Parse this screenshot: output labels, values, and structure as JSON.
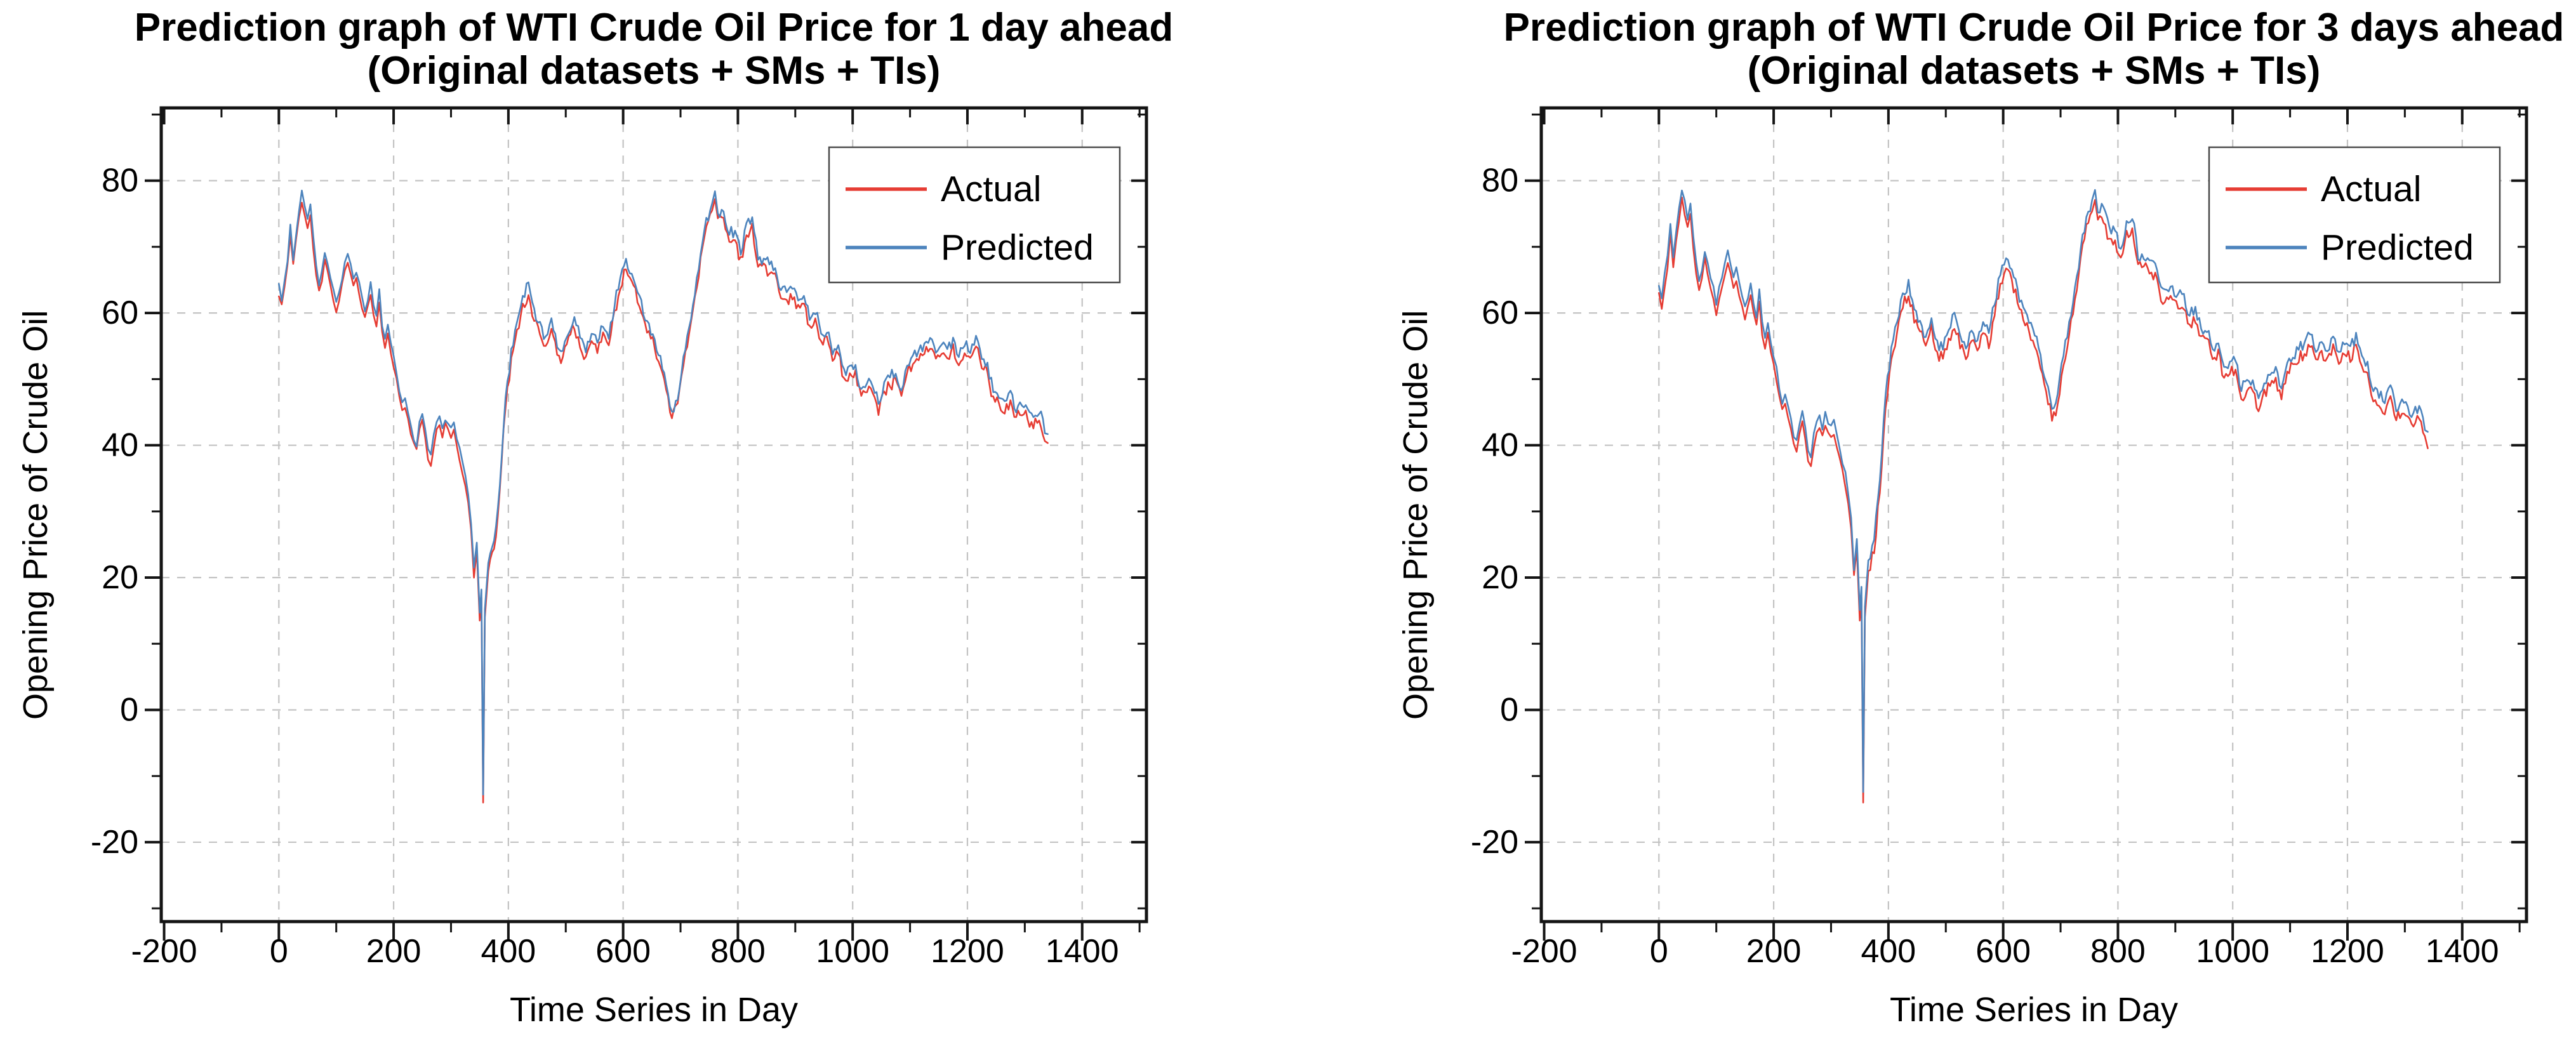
{
  "figure": {
    "background": "#ffffff",
    "frame_color": "#141414",
    "grid_color": "#c3c3c3",
    "tick_label_color": "#000000"
  },
  "chart_data": [
    {
      "type": "line",
      "title_line1": "Prediction graph of WTI Crude Oil Price for 1 day ahead",
      "title_line2": "(Original datasets + SMs + TIs)",
      "xlabel": "Time Series in Day",
      "ylabel": "Opening Price of Crude Oil",
      "xlim": [
        -205,
        1512
      ],
      "ylim": [
        -32,
        91
      ],
      "x_ticks_major": [
        -200,
        0,
        200,
        400,
        600,
        800,
        1000,
        1200,
        1400
      ],
      "x_ticks_minor": [
        -100,
        100,
        300,
        500,
        700,
        900,
        1100,
        1300,
        1500
      ],
      "y_ticks_major": [
        -20,
        0,
        20,
        40,
        60,
        80
      ],
      "y_ticks_minor": [
        -30,
        -10,
        10,
        30,
        50,
        70,
        90
      ],
      "grid": true,
      "legend_position": "top-right",
      "x": [
        0,
        5,
        10,
        15,
        20,
        25,
        30,
        35,
        40,
        45,
        50,
        55,
        60,
        65,
        70,
        75,
        80,
        85,
        90,
        95,
        100,
        105,
        110,
        115,
        120,
        125,
        130,
        135,
        140,
        145,
        150,
        155,
        160,
        165,
        170,
        175,
        180,
        185,
        190,
        195,
        200,
        205,
        210,
        215,
        220,
        225,
        230,
        235,
        240,
        245,
        250,
        255,
        260,
        265,
        270,
        275,
        280,
        285,
        290,
        295,
        300,
        305,
        310,
        315,
        320,
        325,
        330,
        335,
        340,
        345,
        350,
        353,
        356,
        359,
        362,
        365,
        375,
        385,
        395,
        405,
        415,
        425,
        435,
        445,
        455,
        465,
        475,
        485,
        495,
        505,
        515,
        525,
        535,
        545,
        555,
        565,
        575,
        585,
        595,
        605,
        615,
        625,
        635,
        645,
        655,
        665,
        675,
        685,
        695,
        705,
        715,
        725,
        735,
        745,
        755,
        760,
        765,
        775,
        785,
        795,
        805,
        815,
        825,
        835,
        845,
        855,
        865,
        875,
        885,
        895,
        905,
        915,
        925,
        935,
        945,
        955,
        965,
        975,
        985,
        995,
        1005,
        1015,
        1025,
        1035,
        1045,
        1055,
        1065,
        1075,
        1085,
        1095,
        1105,
        1115,
        1125,
        1135,
        1145,
        1155,
        1165,
        1175,
        1185,
        1195,
        1205,
        1215,
        1225,
        1235,
        1245,
        1255,
        1265,
        1275,
        1285,
        1295,
        1305,
        1315,
        1325,
        1335,
        1340
      ],
      "series": [
        {
          "name": "Actual",
          "color": "#e63c33",
          "values": [
            63,
            61,
            64,
            67,
            72,
            67,
            71,
            74,
            77,
            75,
            73,
            75,
            70,
            66,
            63,
            65,
            68,
            66,
            64,
            62,
            60,
            62,
            64,
            66,
            68,
            66,
            64,
            65,
            63,
            61,
            59,
            61,
            63,
            60,
            58,
            62,
            57,
            55,
            57,
            54,
            52,
            50,
            47,
            45,
            46,
            44,
            42,
            40,
            39,
            42,
            44,
            41,
            38,
            37,
            40,
            42,
            43,
            41,
            43,
            42,
            41,
            42,
            40,
            38,
            36,
            34,
            31,
            27,
            20,
            24,
            13.5,
            17,
            -14,
            14,
            17.5,
            21,
            24,
            33,
            46,
            53,
            57,
            61,
            63,
            59,
            57,
            55,
            58,
            54,
            53,
            56,
            58,
            55,
            53,
            56,
            54,
            57,
            55,
            60,
            64,
            67,
            65,
            62,
            59,
            57,
            55,
            52,
            48,
            44,
            46,
            52,
            57,
            62,
            68,
            73,
            75,
            77,
            74,
            74,
            71,
            71,
            68,
            72,
            73,
            67,
            67,
            66,
            66,
            62,
            62,
            62,
            61,
            61,
            58,
            59,
            56,
            56,
            53,
            54,
            50,
            51,
            51,
            47,
            48,
            48,
            45,
            48,
            49,
            50,
            47,
            51,
            52,
            53,
            54,
            55,
            53,
            54,
            53,
            55,
            52,
            54,
            53,
            55,
            52,
            51,
            47,
            46,
            45,
            47,
            44,
            45,
            44,
            43,
            44,
            41,
            40
          ]
        },
        {
          "name": "Predicted",
          "color": "#4d84bd",
          "values": [
            64.2,
            62.2,
            65.2,
            68.2,
            73.2,
            68.2,
            72.2,
            75.2,
            78.2,
            76.2,
            74.2,
            76.2,
            71.2,
            67.2,
            64.2,
            66.2,
            69.2,
            67.2,
            65.2,
            63.2,
            61.2,
            63.2,
            65.2,
            67.2,
            69.2,
            67.2,
            65.2,
            66.2,
            64.2,
            62.2,
            60.2,
            62.2,
            64.2,
            61.2,
            59.2,
            63.2,
            58.2,
            56.2,
            58.2,
            55.2,
            53.2,
            51.2,
            48.2,
            46.2,
            47.2,
            45.2,
            43.2,
            41.2,
            40.2,
            43.2,
            45.2,
            42.2,
            39.2,
            38.2,
            41.2,
            43.2,
            44.2,
            42.2,
            44.2,
            43.2,
            42.2,
            43.2,
            41.2,
            39.2,
            37.2,
            35.2,
            32.2,
            28.2,
            21.2,
            25.2,
            14.7,
            18.2,
            -12.8,
            15.2,
            18.7,
            22.2,
            25.2,
            34.2,
            47.2,
            54.2,
            58.2,
            62.2,
            64.2,
            60.2,
            58.2,
            56.2,
            59.2,
            55.2,
            54.2,
            57.2,
            59.2,
            56.2,
            54.2,
            57.2,
            55.2,
            58.2,
            56.2,
            61.2,
            65.2,
            68.2,
            66.2,
            63.2,
            60.2,
            58.2,
            56.2,
            53.2,
            49.2,
            45.2,
            47.2,
            53.2,
            58.2,
            63.2,
            69.2,
            74.2,
            76.2,
            78.2,
            75.2,
            75.2,
            72.2,
            72.2,
            69.2,
            73.2,
            74.2,
            68.2,
            68.2,
            67.2,
            67.2,
            63.2,
            63.2,
            63.2,
            62.2,
            62.2,
            59.2,
            60.2,
            57.2,
            57.2,
            54.2,
            55.2,
            51.2,
            52.2,
            52.2,
            48.2,
            49.2,
            49.2,
            46.2,
            49.2,
            50.2,
            51.2,
            48.2,
            52.2,
            53.2,
            54.2,
            55.2,
            56.2,
            54.2,
            55.2,
            54.2,
            56.2,
            53.2,
            55.2,
            54.2,
            56.2,
            53.2,
            52.2,
            48.2,
            47.2,
            46.2,
            48.2,
            45.2,
            46.2,
            45.2,
            44.2,
            45.2,
            42.2,
            41.2
          ]
        }
      ]
    },
    {
      "type": "line",
      "title_line1": "Prediction graph of WTI Crude Oil Price for 3 days ahead",
      "title_line2": "(Original datasets + SMs + TIs)",
      "xlabel": "Time Series in Day",
      "ylabel": "Opening Price of Crude Oil",
      "xlim": [
        -205,
        1512
      ],
      "ylim": [
        -32,
        91
      ],
      "x_ticks_major": [
        -200,
        0,
        200,
        400,
        600,
        800,
        1000,
        1200,
        1400
      ],
      "x_ticks_minor": [
        -100,
        100,
        300,
        500,
        700,
        900,
        1100,
        1300,
        1500
      ],
      "y_ticks_major": [
        -20,
        0,
        20,
        40,
        60,
        80
      ],
      "y_ticks_minor": [
        -30,
        -10,
        10,
        30,
        50,
        70,
        90
      ],
      "grid": true,
      "legend_position": "top-right",
      "x": [
        0,
        5,
        10,
        15,
        20,
        25,
        30,
        35,
        40,
        45,
        50,
        55,
        60,
        65,
        70,
        75,
        80,
        85,
        90,
        95,
        100,
        105,
        110,
        115,
        120,
        125,
        130,
        135,
        140,
        145,
        150,
        155,
        160,
        165,
        170,
        175,
        180,
        185,
        190,
        195,
        200,
        205,
        210,
        215,
        220,
        225,
        230,
        235,
        240,
        245,
        250,
        255,
        260,
        265,
        270,
        275,
        280,
        285,
        290,
        295,
        300,
        305,
        310,
        315,
        320,
        325,
        330,
        335,
        340,
        345,
        350,
        353,
        356,
        359,
        362,
        365,
        375,
        385,
        395,
        405,
        415,
        425,
        435,
        445,
        455,
        465,
        475,
        485,
        495,
        505,
        515,
        525,
        535,
        545,
        555,
        565,
        575,
        585,
        595,
        605,
        615,
        625,
        635,
        645,
        655,
        665,
        675,
        685,
        695,
        705,
        715,
        725,
        735,
        745,
        755,
        760,
        765,
        775,
        785,
        795,
        805,
        815,
        825,
        835,
        845,
        855,
        865,
        875,
        885,
        895,
        905,
        915,
        925,
        935,
        945,
        955,
        965,
        975,
        985,
        995,
        1005,
        1015,
        1025,
        1035,
        1045,
        1055,
        1065,
        1075,
        1085,
        1095,
        1105,
        1115,
        1125,
        1135,
        1145,
        1155,
        1165,
        1175,
        1185,
        1195,
        1205,
        1215,
        1225,
        1235,
        1245,
        1255,
        1265,
        1275,
        1285,
        1295,
        1305,
        1315,
        1325,
        1335,
        1340
      ],
      "series": [
        {
          "name": "Actual",
          "color": "#e63c33",
          "values": [
            63,
            61,
            64,
            67,
            72,
            67,
            71,
            74,
            77,
            75,
            73,
            75,
            70,
            66,
            63,
            65,
            68,
            66,
            64,
            62,
            60,
            62,
            64,
            66,
            68,
            66,
            64,
            65,
            63,
            61,
            59,
            61,
            63,
            60,
            58,
            62,
            57,
            55,
            57,
            54,
            52,
            50,
            47,
            45,
            46,
            44,
            42,
            40,
            39,
            42,
            44,
            41,
            38,
            37,
            40,
            42,
            43,
            41,
            43,
            42,
            41,
            42,
            40,
            38,
            36,
            34,
            31,
            27,
            20,
            24,
            13.5,
            17,
            -14,
            14,
            17.5,
            21,
            24,
            33,
            46,
            53,
            57,
            61,
            63,
            59,
            57,
            55,
            58,
            54,
            53,
            56,
            58,
            55,
            53,
            56,
            54,
            57,
            55,
            60,
            64,
            67,
            65,
            62,
            59,
            57,
            55,
            52,
            48,
            44,
            46,
            52,
            57,
            62,
            68,
            73,
            75,
            77,
            74,
            74,
            71,
            71,
            68,
            72,
            73,
            67,
            67,
            66,
            66,
            62,
            62,
            62,
            61,
            61,
            58,
            59,
            56,
            56,
            53,
            54,
            50,
            51,
            51,
            47,
            48,
            48,
            45,
            48,
            49,
            50,
            47,
            51,
            52,
            53,
            54,
            55,
            53,
            54,
            53,
            55,
            52,
            54,
            53,
            55,
            52,
            51,
            47,
            46,
            45,
            47,
            44,
            45,
            44,
            43,
            44,
            41,
            40
          ]
        },
        {
          "name": "Predicted",
          "color": "#4d84bd",
          "values": [
            64.6,
            62.6,
            65.6,
            68.6,
            73.6,
            68.6,
            72.6,
            75.6,
            78.6,
            76.6,
            74.6,
            76.6,
            71.6,
            67.6,
            64.6,
            66.6,
            69.6,
            67.6,
            65.6,
            63.6,
            61.6,
            63.6,
            65.6,
            67.6,
            69.6,
            67.6,
            65.6,
            66.6,
            64.6,
            62.6,
            60.6,
            62.6,
            64.6,
            61.6,
            59.6,
            63.6,
            58.6,
            56.6,
            58.6,
            55.6,
            53.6,
            51.6,
            48.6,
            46.6,
            47.6,
            45.6,
            43.6,
            41.6,
            40.6,
            43.6,
            45.6,
            42.6,
            39.6,
            38.6,
            41.6,
            43.6,
            44.6,
            42.6,
            44.6,
            43.6,
            42.6,
            43.6,
            41.6,
            39.6,
            37.6,
            35.6,
            32.6,
            28.6,
            21.6,
            25.6,
            15.1,
            18.6,
            -12.4,
            15.6,
            19.1,
            22.6,
            25.6,
            34.6,
            47.6,
            54.6,
            58.6,
            62.6,
            64.6,
            60.6,
            58.6,
            56.6,
            59.6,
            55.6,
            54.6,
            57.6,
            59.6,
            56.6,
            54.6,
            57.6,
            55.6,
            58.6,
            56.6,
            61.6,
            65.6,
            68.6,
            66.6,
            63.6,
            60.6,
            58.6,
            56.6,
            53.6,
            49.6,
            45.6,
            47.6,
            53.6,
            58.6,
            63.6,
            69.6,
            74.6,
            76.6,
            78.6,
            75.6,
            75.6,
            72.6,
            72.6,
            69.6,
            73.6,
            74.6,
            68.6,
            68.6,
            67.6,
            67.6,
            63.6,
            63.6,
            63.6,
            62.6,
            62.6,
            59.6,
            60.6,
            57.6,
            57.6,
            54.6,
            55.6,
            51.6,
            52.6,
            52.6,
            48.6,
            49.6,
            49.6,
            46.6,
            49.6,
            50.6,
            51.6,
            48.6,
            52.6,
            53.6,
            54.6,
            55.6,
            56.6,
            54.6,
            55.6,
            54.6,
            56.6,
            53.6,
            55.6,
            54.6,
            56.6,
            53.6,
            52.6,
            48.6,
            47.6,
            46.6,
            48.6,
            45.6,
            46.6,
            45.6,
            44.6,
            45.6,
            42.6,
            41.6
          ]
        }
      ]
    }
  ]
}
